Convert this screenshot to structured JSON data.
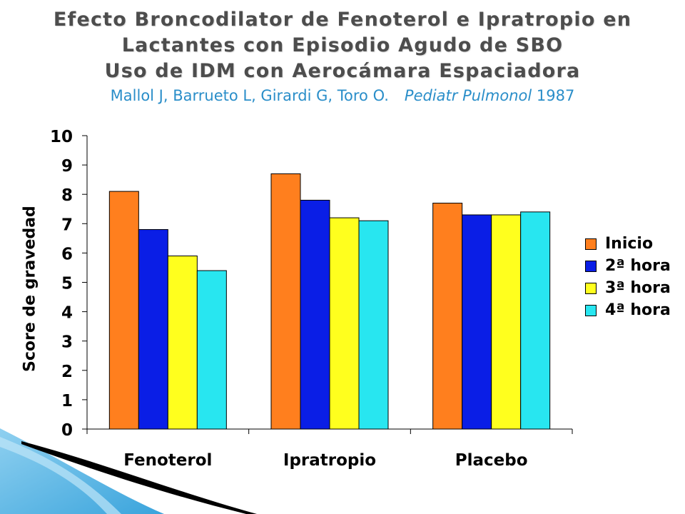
{
  "slide": {
    "title_lines": [
      "Efecto Broncodilator de Fenoterol e Ipratropio en",
      "Lactantes con Episodio Agudo de SBO",
      "Uso de IDM con Aerocámara Espaciadora"
    ],
    "citation_authors": "Mallol J, Barrueto L, Girardi G, Toro O.",
    "citation_journal": "Pediatr Pulmonol",
    "citation_year": "1987"
  },
  "chart_data": {
    "type": "bar",
    "ylabel": "Score de gravedad",
    "categories": [
      "Fenoterol",
      "Ipratropio",
      "Placebo"
    ],
    "ylim": [
      0,
      10
    ],
    "yticks": [
      "0",
      "1",
      "2",
      "3",
      "4",
      "5",
      "6",
      "7",
      "8",
      "9",
      "10"
    ],
    "grid": false,
    "legend_position": "right",
    "series": [
      {
        "name": "Inicio",
        "color": "#ff7f1e",
        "values": [
          8.1,
          8.7,
          7.7
        ]
      },
      {
        "name": "2ª hora",
        "color": "#0a1ee6",
        "values": [
          6.8,
          7.8,
          7.3
        ]
      },
      {
        "name": "3ª hora",
        "color": "#ffff1e",
        "values": [
          5.9,
          7.2,
          7.3
        ]
      },
      {
        "name": "4ª hora",
        "color": "#28e6f0",
        "values": [
          5.4,
          7.1,
          7.4
        ]
      }
    ]
  }
}
